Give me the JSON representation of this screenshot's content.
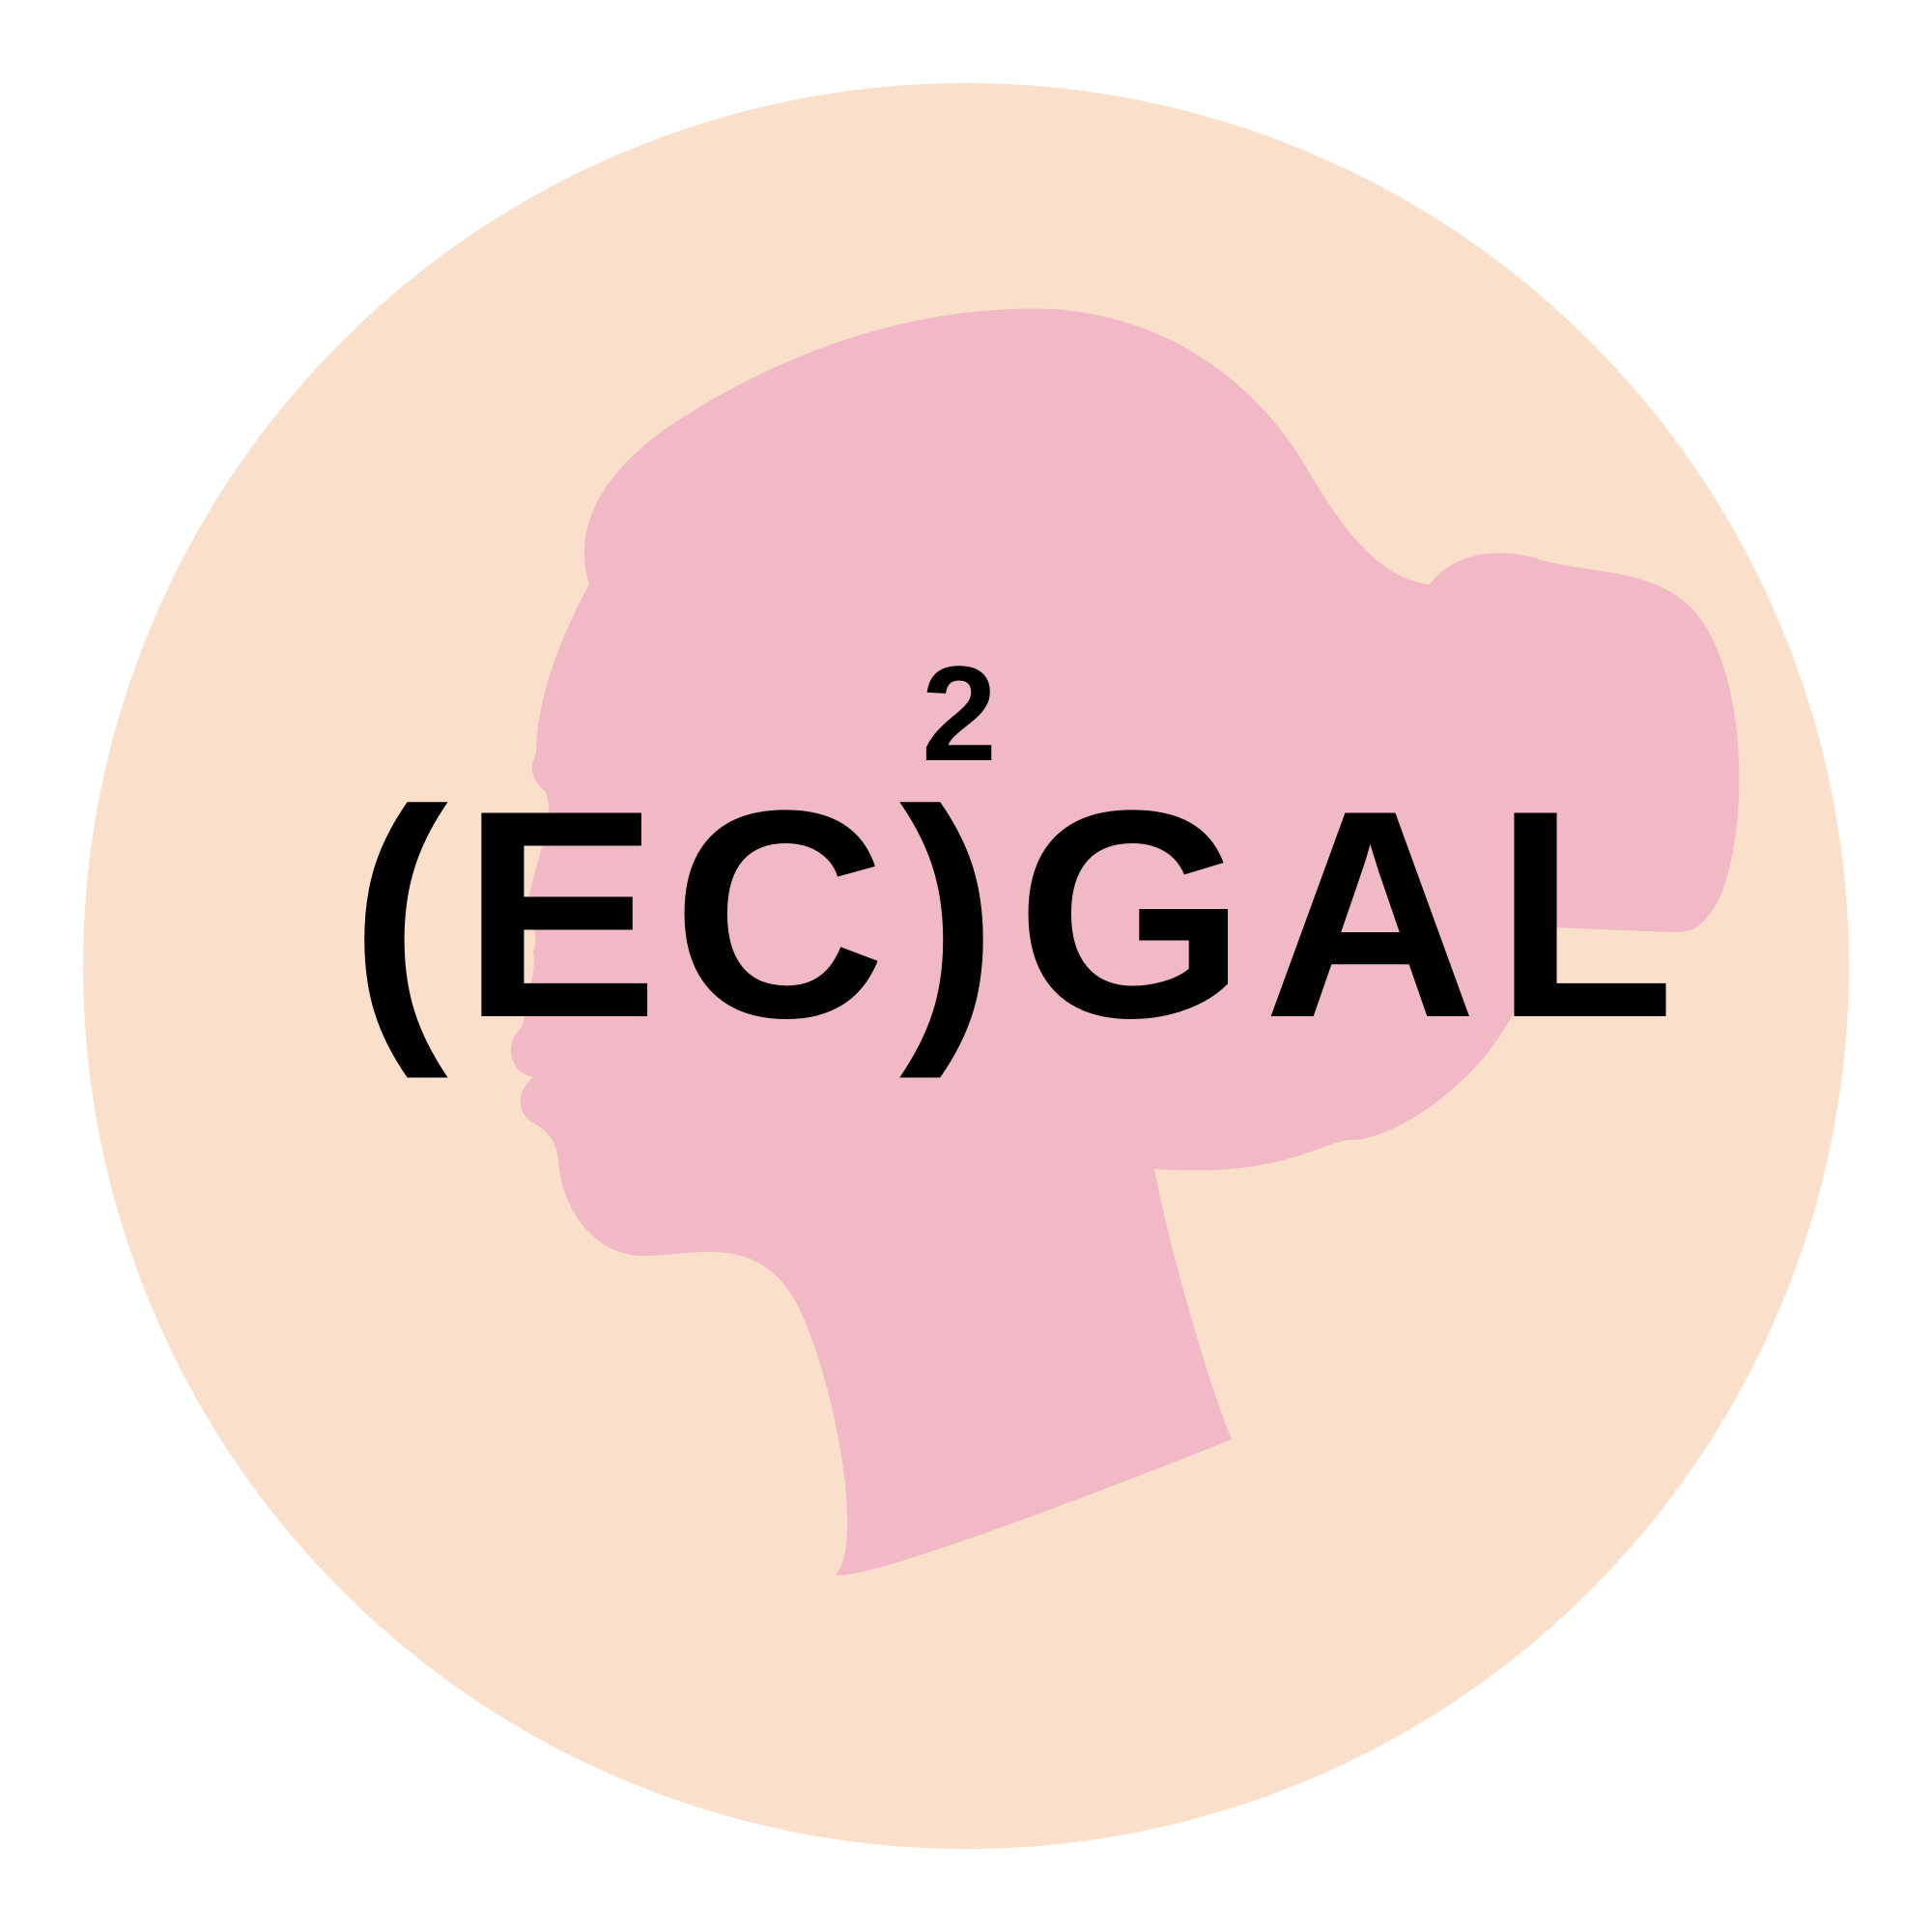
{
  "logo": {
    "text_left": "(EC)",
    "exponent": "2",
    "text_right": "GAL"
  },
  "colors": {
    "circle": "#FAE0CB",
    "silhouette": "#F0B9C5",
    "text": "#000000",
    "background": "#FFFFFF"
  },
  "icons": {
    "silhouette": "woman-head-profile-icon"
  }
}
